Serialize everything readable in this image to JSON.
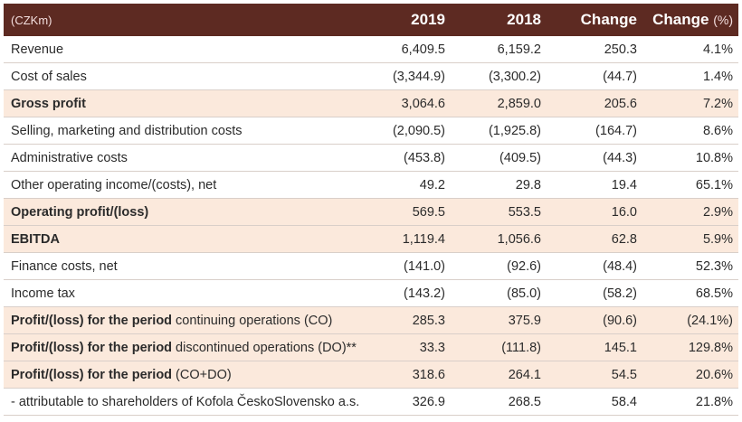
{
  "header": {
    "unit": "(CZKm)",
    "col_2019": "2019",
    "col_2018": "2018",
    "col_change": "Change",
    "col_change_pct": "Change",
    "col_change_pct_suffix": "(%)"
  },
  "rows": [
    {
      "label": "Revenue",
      "sub": "",
      "v2019": "6,409.5",
      "v2018": "6,159.2",
      "change": "250.3",
      "pct": "4.1%",
      "bold": false,
      "highlight": false
    },
    {
      "label": "Cost of sales",
      "sub": "",
      "v2019": "(3,344.9)",
      "v2018": "(3,300.2)",
      "change": "(44.7)",
      "pct": "1.4%",
      "bold": false,
      "highlight": false
    },
    {
      "label": "Gross profit",
      "sub": "",
      "v2019": "3,064.6",
      "v2018": "2,859.0",
      "change": "205.6",
      "pct": "7.2%",
      "bold": true,
      "highlight": true
    },
    {
      "label": "Selling, marketing and distribution costs",
      "sub": "",
      "v2019": "(2,090.5)",
      "v2018": "(1,925.8)",
      "change": "(164.7)",
      "pct": "8.6%",
      "bold": false,
      "highlight": false
    },
    {
      "label": "Administrative costs",
      "sub": "",
      "v2019": "(453.8)",
      "v2018": "(409.5)",
      "change": "(44.3)",
      "pct": "10.8%",
      "bold": false,
      "highlight": false
    },
    {
      "label": "Other operating income/(costs), net",
      "sub": "",
      "v2019": "49.2",
      "v2018": "29.8",
      "change": "19.4",
      "pct": "65.1%",
      "bold": false,
      "highlight": false
    },
    {
      "label": "Operating profit/(loss)",
      "sub": "",
      "v2019": "569.5",
      "v2018": "553.5",
      "change": "16.0",
      "pct": "2.9%",
      "bold": true,
      "highlight": true
    },
    {
      "label": "EBITDA",
      "sub": "",
      "v2019": "1,119.4",
      "v2018": "1,056.6",
      "change": "62.8",
      "pct": "5.9%",
      "bold": true,
      "highlight": true
    },
    {
      "label": "Finance costs, net",
      "sub": "",
      "v2019": "(141.0)",
      "v2018": "(92.6)",
      "change": "(48.4)",
      "pct": "52.3%",
      "bold": false,
      "highlight": false
    },
    {
      "label": "Income tax",
      "sub": "",
      "v2019": "(143.2)",
      "v2018": "(85.0)",
      "change": "(58.2)",
      "pct": "68.5%",
      "bold": false,
      "highlight": false
    },
    {
      "label": "Profit/(loss) for the period",
      "sub": " continuing operations (CO)",
      "v2019": "285.3",
      "v2018": "375.9",
      "change": "(90.6)",
      "pct": "(24.1%)",
      "bold": true,
      "highlight": true
    },
    {
      "label": "Profit/(loss) for the period",
      "sub": " discontinued operations (DO)**",
      "v2019": "33.3",
      "v2018": "(111.8)",
      "change": "145.1",
      "pct": "129.8%",
      "bold": true,
      "highlight": true
    },
    {
      "label": "Profit/(loss) for the period",
      "sub": " (CO+DO)",
      "v2019": "318.6",
      "v2018": "264.1",
      "change": "54.5",
      "pct": "20.6%",
      "bold": true,
      "highlight": true
    },
    {
      "label": "- attributable to shareholders of Kofola ČeskoSlovensko a.s.",
      "sub": "",
      "v2019": "326.9",
      "v2018": "268.5",
      "change": "58.4",
      "pct": "21.8%",
      "bold": false,
      "highlight": false
    }
  ]
}
